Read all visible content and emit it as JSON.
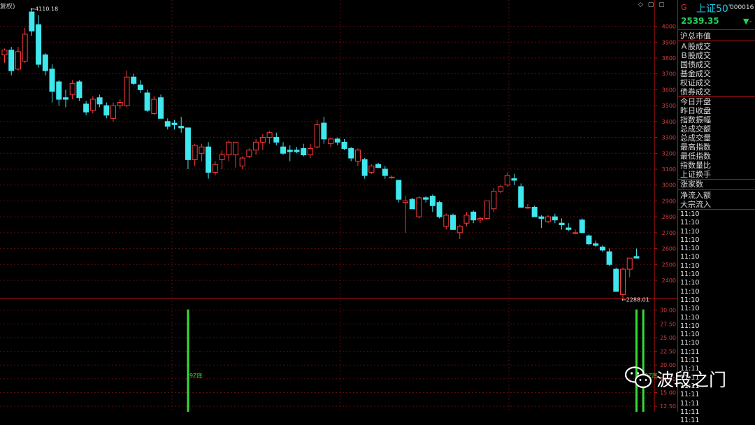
{
  "header": {
    "top_left_label": "复权)",
    "corner_icons": "◇ ▢ ▢"
  },
  "chart_data": {
    "type": "candlestick",
    "main": {
      "ylim": [
        2290,
        4130
      ],
      "y_ticks": [
        "4000",
        "3900",
        "3800",
        "3700",
        "3600",
        "3500",
        "3400",
        "3300",
        "3200",
        "3100",
        "3000",
        "2900",
        "2800",
        "2700",
        "2600",
        "2500",
        "2400"
      ],
      "high_label": "←4110.18",
      "low_label": "←2288.01",
      "up_color": "#ff3b3b",
      "down_color": "#3fe8ee",
      "candles": [
        {
          "o": 3820,
          "h": 3860,
          "l": 3770,
          "c": 3850
        },
        {
          "o": 3850,
          "h": 3870,
          "l": 3690,
          "c": 3720
        },
        {
          "o": 3730,
          "h": 3870,
          "l": 3720,
          "c": 3840
        },
        {
          "o": 3780,
          "h": 3990,
          "l": 3770,
          "c": 3950
        },
        {
          "o": 4090,
          "h": 4110.18,
          "l": 3940,
          "c": 3970
        },
        {
          "o": 4010,
          "h": 4070,
          "l": 3740,
          "c": 3760
        },
        {
          "o": 3820,
          "h": 3830,
          "l": 3690,
          "c": 3720
        },
        {
          "o": 3730,
          "h": 3760,
          "l": 3520,
          "c": 3590
        },
        {
          "o": 3650,
          "h": 3660,
          "l": 3500,
          "c": 3540
        },
        {
          "o": 3550,
          "h": 3600,
          "l": 3490,
          "c": 3540
        },
        {
          "o": 3570,
          "h": 3660,
          "l": 3540,
          "c": 3640
        },
        {
          "o": 3650,
          "h": 3660,
          "l": 3530,
          "c": 3550
        },
        {
          "o": 3510,
          "h": 3530,
          "l": 3440,
          "c": 3460
        },
        {
          "o": 3470,
          "h": 3560,
          "l": 3450,
          "c": 3540
        },
        {
          "o": 3550,
          "h": 3570,
          "l": 3490,
          "c": 3510
        },
        {
          "o": 3500,
          "h": 3520,
          "l": 3420,
          "c": 3440
        },
        {
          "o": 3420,
          "h": 3520,
          "l": 3400,
          "c": 3500
        },
        {
          "o": 3500,
          "h": 3540,
          "l": 3480,
          "c": 3520
        },
        {
          "o": 3500,
          "h": 3720,
          "l": 3490,
          "c": 3680
        },
        {
          "o": 3680,
          "h": 3700,
          "l": 3630,
          "c": 3640
        },
        {
          "o": 3630,
          "h": 3660,
          "l": 3580,
          "c": 3600
        },
        {
          "o": 3580,
          "h": 3600,
          "l": 3460,
          "c": 3470
        },
        {
          "o": 3450,
          "h": 3560,
          "l": 3440,
          "c": 3540
        },
        {
          "o": 3550,
          "h": 3570,
          "l": 3420,
          "c": 3420
        },
        {
          "o": 3400,
          "h": 3420,
          "l": 3350,
          "c": 3370
        },
        {
          "o": 3390,
          "h": 3410,
          "l": 3350,
          "c": 3380
        },
        {
          "o": 3370,
          "h": 3430,
          "l": 3330,
          "c": 3360
        },
        {
          "o": 3360,
          "h": 3360,
          "l": 3100,
          "c": 3160
        },
        {
          "o": 3160,
          "h": 3260,
          "l": 3120,
          "c": 3250
        },
        {
          "o": 3200,
          "h": 3260,
          "l": 3150,
          "c": 3240
        },
        {
          "o": 3240,
          "h": 3270,
          "l": 3040,
          "c": 3080
        },
        {
          "o": 3080,
          "h": 3150,
          "l": 3060,
          "c": 3130
        },
        {
          "o": 3160,
          "h": 3220,
          "l": 3100,
          "c": 3190
        },
        {
          "o": 3190,
          "h": 3280,
          "l": 3150,
          "c": 3270
        },
        {
          "o": 3190,
          "h": 3270,
          "l": 3110,
          "c": 3270
        },
        {
          "o": 3120,
          "h": 3180,
          "l": 3100,
          "c": 3170
        },
        {
          "o": 3180,
          "h": 3230,
          "l": 3170,
          "c": 3220
        },
        {
          "o": 3220,
          "h": 3290,
          "l": 3190,
          "c": 3270
        },
        {
          "o": 3270,
          "h": 3320,
          "l": 3220,
          "c": 3300
        },
        {
          "o": 3300,
          "h": 3340,
          "l": 3260,
          "c": 3330
        },
        {
          "o": 3300,
          "h": 3330,
          "l": 3250,
          "c": 3270
        },
        {
          "o": 3240,
          "h": 3270,
          "l": 3190,
          "c": 3200
        },
        {
          "o": 3220,
          "h": 3250,
          "l": 3150,
          "c": 3210
        },
        {
          "o": 3220,
          "h": 3240,
          "l": 3200,
          "c": 3210
        },
        {
          "o": 3230,
          "h": 3260,
          "l": 3180,
          "c": 3190
        },
        {
          "o": 3190,
          "h": 3260,
          "l": 3170,
          "c": 3230
        },
        {
          "o": 3240,
          "h": 3410,
          "l": 3230,
          "c": 3380
        },
        {
          "o": 3390,
          "h": 3430,
          "l": 3260,
          "c": 3290
        },
        {
          "o": 3260,
          "h": 3300,
          "l": 3240,
          "c": 3290
        },
        {
          "o": 3290,
          "h": 3300,
          "l": 3250,
          "c": 3270
        },
        {
          "o": 3270,
          "h": 3290,
          "l": 3220,
          "c": 3230
        },
        {
          "o": 3230,
          "h": 3240,
          "l": 3150,
          "c": 3170
        },
        {
          "o": 3150,
          "h": 3230,
          "l": 3120,
          "c": 3220
        },
        {
          "o": 3160,
          "h": 3170,
          "l": 3040,
          "c": 3060
        },
        {
          "o": 3080,
          "h": 3130,
          "l": 3070,
          "c": 3120
        },
        {
          "o": 3130,
          "h": 3140,
          "l": 3110,
          "c": 3110
        },
        {
          "o": 3100,
          "h": 3120,
          "l": 3040,
          "c": 3060
        },
        {
          "o": 3050,
          "h": 3060,
          "l": 3040,
          "c": 3050
        },
        {
          "o": 3030,
          "h": 3030,
          "l": 2890,
          "c": 2910
        },
        {
          "o": 2890,
          "h": 2930,
          "l": 2700,
          "c": 2900
        },
        {
          "o": 2910,
          "h": 2920,
          "l": 2850,
          "c": 2850
        },
        {
          "o": 2800,
          "h": 2930,
          "l": 2790,
          "c": 2920
        },
        {
          "o": 2920,
          "h": 2930,
          "l": 2890,
          "c": 2910
        },
        {
          "o": 2930,
          "h": 2940,
          "l": 2830,
          "c": 2870
        },
        {
          "o": 2890,
          "h": 2900,
          "l": 2790,
          "c": 2800
        },
        {
          "o": 2740,
          "h": 2820,
          "l": 2720,
          "c": 2810
        },
        {
          "o": 2810,
          "h": 2820,
          "l": 2720,
          "c": 2720
        },
        {
          "o": 2700,
          "h": 2750,
          "l": 2660,
          "c": 2740
        },
        {
          "o": 2760,
          "h": 2830,
          "l": 2740,
          "c": 2810
        },
        {
          "o": 2830,
          "h": 2840,
          "l": 2760,
          "c": 2780
        },
        {
          "o": 2780,
          "h": 2800,
          "l": 2760,
          "c": 2790
        },
        {
          "o": 2790,
          "h": 2900,
          "l": 2780,
          "c": 2900
        },
        {
          "o": 2850,
          "h": 2980,
          "l": 2830,
          "c": 2960
        },
        {
          "o": 2960,
          "h": 3000,
          "l": 2950,
          "c": 2990
        },
        {
          "o": 3000,
          "h": 3080,
          "l": 2990,
          "c": 3060
        },
        {
          "o": 3040,
          "h": 3070,
          "l": 3000,
          "c": 3030
        },
        {
          "o": 2990,
          "h": 3010,
          "l": 2860,
          "c": 2860
        },
        {
          "o": 2860,
          "h": 2880,
          "l": 2850,
          "c": 2860
        },
        {
          "o": 2860,
          "h": 2870,
          "l": 2800,
          "c": 2800
        },
        {
          "o": 2800,
          "h": 2810,
          "l": 2730,
          "c": 2790
        },
        {
          "o": 2770,
          "h": 2810,
          "l": 2760,
          "c": 2800
        },
        {
          "o": 2800,
          "h": 2820,
          "l": 2760,
          "c": 2780
        },
        {
          "o": 2760,
          "h": 2790,
          "l": 2720,
          "c": 2750
        },
        {
          "o": 2730,
          "h": 2760,
          "l": 2710,
          "c": 2720
        },
        {
          "o": 2700,
          "h": 2720,
          "l": 2690,
          "c": 2700
        },
        {
          "o": 2780,
          "h": 2790,
          "l": 2700,
          "c": 2700
        },
        {
          "o": 2680,
          "h": 2690,
          "l": 2620,
          "c": 2630
        },
        {
          "o": 2630,
          "h": 2650,
          "l": 2610,
          "c": 2620
        },
        {
          "o": 2610,
          "h": 2620,
          "l": 2580,
          "c": 2590
        },
        {
          "o": 2580,
          "h": 2600,
          "l": 2490,
          "c": 2500
        },
        {
          "o": 2470,
          "h": 2480,
          "l": 2330,
          "c": 2330
        },
        {
          "o": 2310,
          "h": 2480,
          "l": 2288.01,
          "c": 2470
        },
        {
          "o": 2470,
          "h": 2540,
          "l": 2420,
          "c": 2540
        },
        {
          "o": 2550,
          "h": 2600,
          "l": 2540,
          "c": 2540
        }
      ]
    },
    "sub": {
      "ylim": [
        11.5,
        32
      ],
      "y_ticks": [
        "30.00",
        "27.50",
        "25.00",
        "22.50",
        "20.00",
        "17.50",
        "15.00",
        "12.50"
      ],
      "bar_color": "#33dd33",
      "label_color": "#33dd33",
      "signals": [
        {
          "index": 27,
          "value": 30,
          "label": "9Z底"
        },
        {
          "index": 93,
          "value": 30,
          "label": ""
        },
        {
          "index": 94,
          "value": 30,
          "label": "9Z底"
        }
      ]
    }
  },
  "panel": {
    "g": "G",
    "name": "上证50",
    "name_sup": "*",
    "code": "000016",
    "price": "2539.35",
    "change": "▼-",
    "group1": [
      "沪总市值"
    ],
    "group2": [
      "Ａ股成交",
      "Ｂ股成交",
      "国债成交",
      "基金成交",
      "权证成交",
      "债券成交"
    ],
    "group3": [
      "今日开盘",
      "昨日收盘",
      "指数振幅",
      "总成交额",
      "总成交量",
      "最高指数",
      "最低指数",
      "指数量比",
      "上证换手"
    ],
    "group4": [
      "涨家数"
    ],
    "group5": [
      "净流入额",
      "大宗流入"
    ],
    "times": [
      "11:10",
      "11:10",
      "11:10",
      "11:10",
      "11:10",
      "11:10",
      "11:10",
      "11:10",
      "11:10",
      "11:10",
      "11:10",
      "11:10",
      "11:10",
      "11:10",
      "11:10",
      "11:10",
      "11:11",
      "11:11",
      "11:11",
      "11:11",
      "11:11",
      "11:11",
      "11:11",
      "11:11",
      "11:11"
    ]
  },
  "watermark": {
    "text": "波段之门",
    "icon": "wechat-icon"
  }
}
